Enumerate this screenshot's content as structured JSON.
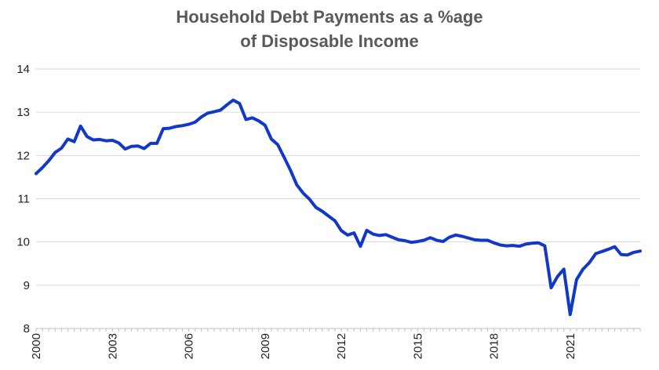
{
  "chart_data": {
    "type": "line",
    "title": [
      "Household Debt Payments as a %age",
      "of Disposable Income"
    ],
    "xlabel": "",
    "ylabel": "",
    "ylim": [
      8,
      14
    ],
    "yticks": [
      "8",
      "9",
      "10",
      "11",
      "12",
      "13",
      "14"
    ],
    "xlim": [
      2000.0,
      2023.75
    ],
    "xticks": [
      "2000",
      "2003",
      "2006",
      "2009",
      "2012",
      "2015",
      "2018",
      "2021"
    ],
    "grid": "horizontal",
    "legend": "none",
    "colors": {
      "line": "#1238c8",
      "grid": "#d9d9d9",
      "axis": "#bfbfbf",
      "text": "#222222",
      "title": "#595959"
    },
    "series": [
      {
        "x": [
          2000.0,
          2000.25,
          2000.5,
          2000.75,
          2001.0,
          2001.25,
          2001.5,
          2001.75,
          2002.0,
          2002.25,
          2002.5,
          2002.75,
          2003.0,
          2003.25,
          2003.5,
          2003.75,
          2004.0,
          2004.25,
          2004.5,
          2004.75,
          2005.0,
          2005.25,
          2005.5,
          2005.75,
          2006.0,
          2006.25,
          2006.5,
          2006.75,
          2007.0,
          2007.25,
          2007.5,
          2007.75,
          2008.0,
          2008.25,
          2008.5,
          2008.75,
          2009.0,
          2009.25,
          2009.5,
          2009.75,
          2010.0,
          2010.25,
          2010.5,
          2010.75,
          2011.0,
          2011.25,
          2011.5,
          2011.75,
          2012.0,
          2012.25,
          2012.5,
          2012.75,
          2013.0,
          2013.25,
          2013.5,
          2013.75,
          2014.0,
          2014.25,
          2014.5,
          2014.75,
          2015.0,
          2015.25,
          2015.5,
          2015.75,
          2016.0,
          2016.25,
          2016.5,
          2016.75,
          2017.0,
          2017.25,
          2017.5,
          2017.75,
          2018.0,
          2018.25,
          2018.5,
          2018.75,
          2019.0,
          2019.25,
          2019.5,
          2019.75,
          2020.0,
          2020.25,
          2020.5,
          2020.75,
          2021.0,
          2021.25,
          2021.5,
          2021.75,
          2022.0,
          2022.25,
          2022.5,
          2022.75,
          2023.0,
          2023.25,
          2023.5,
          2023.75
        ],
        "y": [
          11.58,
          11.72,
          11.88,
          12.07,
          12.17,
          12.38,
          12.32,
          12.68,
          12.44,
          12.36,
          12.37,
          12.34,
          12.35,
          12.29,
          12.15,
          12.21,
          12.22,
          12.16,
          12.28,
          12.28,
          12.62,
          12.63,
          12.67,
          12.69,
          12.72,
          12.77,
          12.89,
          12.98,
          13.01,
          13.05,
          13.17,
          13.28,
          13.2,
          12.83,
          12.87,
          12.8,
          12.7,
          12.38,
          12.25,
          11.96,
          11.66,
          11.32,
          11.13,
          10.99,
          10.8,
          10.71,
          10.6,
          10.49,
          10.26,
          10.16,
          10.21,
          9.9,
          10.27,
          10.18,
          10.15,
          10.17,
          10.11,
          10.05,
          10.03,
          9.99,
          10.01,
          10.04,
          10.1,
          10.04,
          10.01,
          10.11,
          10.16,
          10.13,
          10.09,
          10.05,
          10.04,
          10.04,
          9.98,
          9.93,
          9.91,
          9.92,
          9.9,
          9.95,
          9.97,
          9.98,
          9.91,
          8.94,
          9.2,
          9.37,
          8.32,
          9.13,
          9.37,
          9.52,
          9.73,
          9.78,
          9.83,
          9.89,
          9.71,
          9.7,
          9.76,
          9.79
        ]
      }
    ]
  }
}
